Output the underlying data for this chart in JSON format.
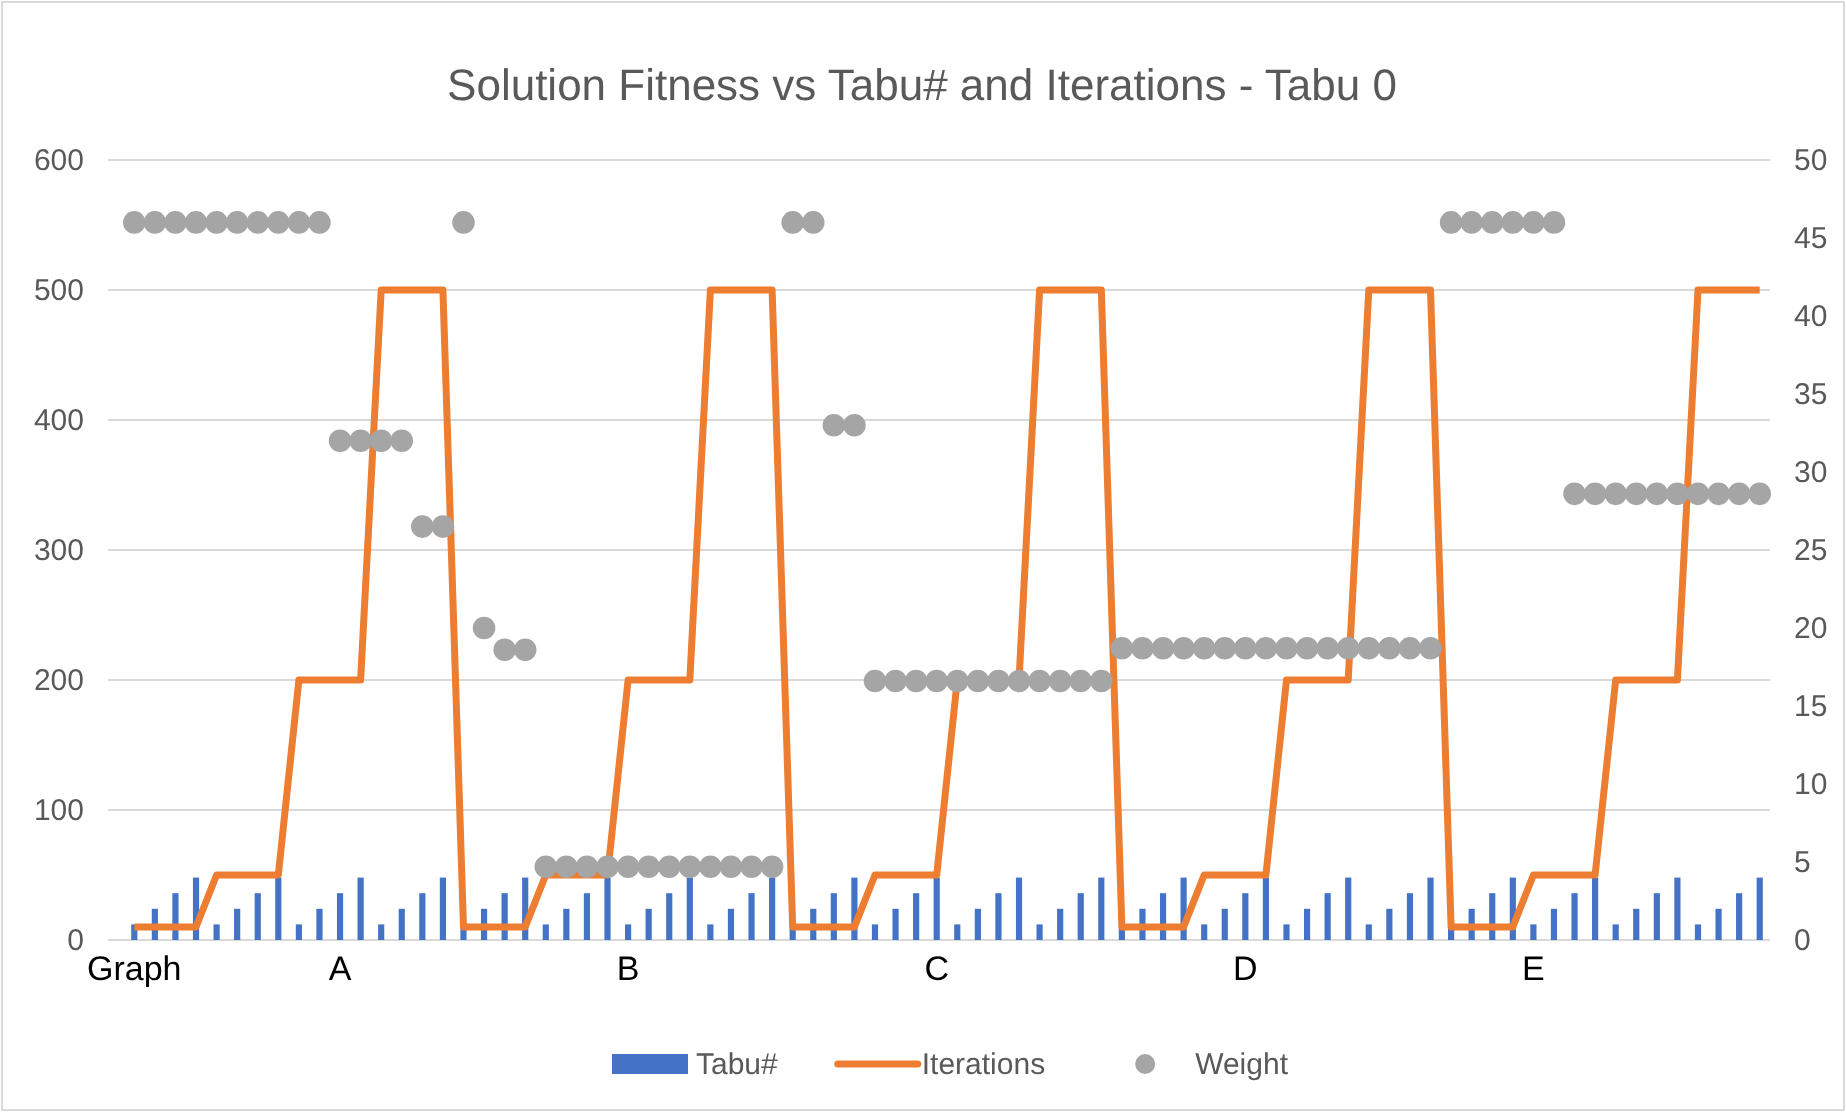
{
  "chart_data": {
    "type": "bar",
    "title": "Solution Fitness vs Tabu# and Iterations - Tabu 0",
    "categories": [
      "Graph",
      null,
      null,
      null,
      null,
      null,
      null,
      null,
      null,
      null,
      "A",
      null,
      null,
      null,
      null,
      null,
      null,
      null,
      null,
      null,
      null,
      null,
      null,
      null,
      "B",
      null,
      null,
      null,
      null,
      null,
      null,
      null,
      null,
      null,
      null,
      null,
      null,
      null,
      null,
      "C",
      null,
      null,
      null,
      null,
      null,
      null,
      null,
      null,
      null,
      null,
      null,
      null,
      null,
      null,
      "D",
      null,
      null,
      null,
      null,
      null,
      null,
      null,
      null,
      null,
      null,
      null,
      null,
      null,
      "E",
      null,
      null,
      null,
      null,
      null,
      null,
      null,
      null,
      null,
      null,
      null
    ],
    "series": [
      {
        "name": "Tabu#",
        "axis": "y2",
        "color": "#4472c4",
        "values": [
          1,
          2,
          3,
          4,
          1,
          2,
          3,
          4,
          1,
          2,
          3,
          4,
          1,
          2,
          3,
          4,
          1,
          2,
          3,
          4,
          1,
          2,
          3,
          4,
          1,
          2,
          3,
          4,
          1,
          2,
          3,
          4,
          1,
          2,
          3,
          4,
          1,
          2,
          3,
          4,
          1,
          2,
          3,
          4,
          1,
          2,
          3,
          4,
          1,
          2,
          3,
          4,
          1,
          2,
          3,
          4,
          1,
          2,
          3,
          4,
          1,
          2,
          3,
          4,
          1,
          2,
          3,
          4,
          1,
          2,
          3,
          4,
          1,
          2,
          3,
          4,
          1,
          2,
          3,
          4
        ]
      },
      {
        "name": "Iterations",
        "type": "line",
        "color": "#ed7d31",
        "line_style": "solid",
        "values": [
          10,
          10,
          10,
          10,
          50,
          50,
          50,
          50,
          200,
          200,
          200,
          200,
          500,
          500,
          500,
          500,
          10,
          10,
          10,
          10,
          50,
          50,
          50,
          50,
          200,
          200,
          200,
          200,
          500,
          500,
          500,
          500,
          10,
          10,
          10,
          10,
          50,
          50,
          50,
          50,
          200,
          200,
          200,
          200,
          500,
          500,
          500,
          500,
          10,
          10,
          10,
          10,
          50,
          50,
          50,
          50,
          200,
          200,
          200,
          200,
          500,
          500,
          500,
          500,
          10,
          10,
          10,
          10,
          50,
          50,
          50,
          50,
          200,
          200,
          200,
          200,
          500,
          500,
          500,
          500
        ]
      },
      {
        "name": "Weight",
        "type": "scatter",
        "axis": "y2",
        "marker": "circle",
        "color": "#a5a5a5",
        "values": [
          46,
          46,
          46,
          46,
          46,
          46,
          46,
          46,
          46,
          46,
          32,
          32,
          32,
          32,
          26.5,
          26.5,
          46,
          20,
          18.6,
          18.6,
          4.7,
          4.7,
          4.7,
          4.7,
          4.7,
          4.7,
          4.7,
          4.7,
          4.7,
          4.7,
          4.7,
          4.7,
          46,
          46,
          33,
          33,
          16.6,
          16.6,
          16.6,
          16.6,
          16.6,
          16.6,
          16.6,
          16.6,
          16.6,
          16.6,
          16.6,
          16.6,
          18.7,
          18.7,
          18.7,
          18.7,
          18.7,
          18.7,
          18.7,
          18.7,
          18.7,
          18.7,
          18.7,
          18.7,
          18.7,
          18.7,
          18.7,
          18.7,
          46,
          46,
          46,
          46,
          46,
          46,
          28.6,
          28.6,
          28.6,
          28.6,
          28.6,
          28.6,
          28.6,
          28.6,
          28.6,
          28.6
        ]
      }
    ],
    "ylim": [
      0,
      600
    ],
    "yticks": [
      0,
      100,
      200,
      300,
      400,
      500,
      600
    ],
    "y2lim": [
      0,
      50
    ],
    "y2ticks": [
      0,
      5,
      10,
      15,
      20,
      25,
      30,
      35,
      40,
      45,
      50
    ],
    "grid": "y",
    "legend": "bottom"
  }
}
